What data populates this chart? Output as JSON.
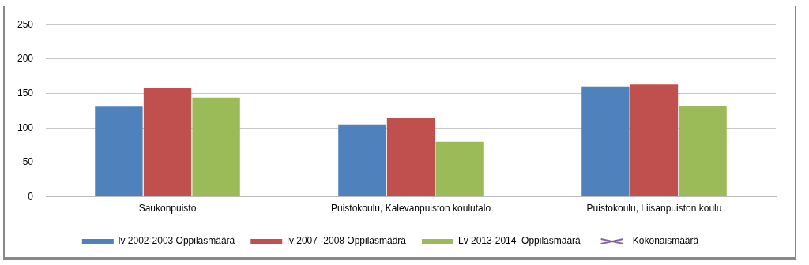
{
  "chart_data": {
    "type": "bar",
    "categories": [
      "Saukonpuisto",
      "Puistokoulu, Kalevanpuiston koulutalo",
      "Puistokoulu, Liisanpuiston koulu"
    ],
    "series": [
      {
        "name": "lv 2002-2003 Oppilasmäärä",
        "color": "#4f81bd",
        "values": [
          131,
          105,
          160
        ]
      },
      {
        "name": "lv 2007 -2008 Oppilasmäärä",
        "color": "#c0504d",
        "values": [
          158,
          115,
          163
        ]
      },
      {
        "name": "Lv 2013-2014  Oppilasmäärä",
        "color": "#9bbb59",
        "values": [
          144,
          80,
          132
        ]
      },
      {
        "name": "Kokonaismäärä",
        "color": "#8064a2",
        "type": "line",
        "marker": "cross",
        "values": [
          null,
          null,
          null
        ]
      }
    ],
    "ylim": [
      0,
      250
    ],
    "yticks": [
      0,
      50,
      100,
      150,
      200,
      250
    ],
    "grid": "y",
    "legend": "bottom"
  }
}
